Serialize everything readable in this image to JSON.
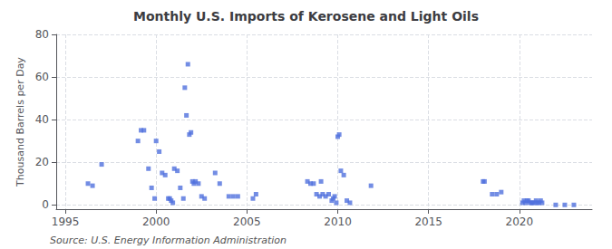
{
  "chart_data": {
    "type": "scatter",
    "title": "Monthly U.S. Imports of Kerosene and Light Oils",
    "ylabel": "Thousand Barrels per Day",
    "annotations": [
      "Source: U.S. Energy Information Administration"
    ],
    "marker": "square",
    "grid": true,
    "xlim": [
      1994.5,
      2024.0
    ],
    "ylim": [
      -2,
      80
    ],
    "xticks": [
      1995,
      2000,
      2005,
      2010,
      2015,
      2020
    ],
    "yticks": [
      0,
      20,
      40,
      60,
      80
    ],
    "x": [
      1996.25,
      1996.5,
      1997.0,
      1999.0,
      1999.17,
      1999.33,
      1999.58,
      1999.75,
      1999.92,
      2000.0,
      2000.17,
      2000.33,
      2000.5,
      2000.67,
      2000.75,
      2000.83,
      2000.92,
      2001.0,
      2001.17,
      2001.33,
      2001.5,
      2001.58,
      2001.67,
      2001.75,
      2001.83,
      2001.92,
      2002.0,
      2002.08,
      2002.17,
      2002.33,
      2002.5,
      2002.67,
      2003.25,
      2003.5,
      2004.0,
      2004.25,
      2004.5,
      2005.33,
      2005.5,
      2008.33,
      2008.5,
      2008.67,
      2008.83,
      2009.0,
      2009.08,
      2009.17,
      2009.33,
      2009.5,
      2009.67,
      2009.75,
      2009.83,
      2009.92,
      2010.0,
      2010.08,
      2010.17,
      2010.33,
      2010.5,
      2010.67,
      2011.83,
      2018.0,
      2018.08,
      2018.5,
      2018.75,
      2019.0,
      2020.17,
      2020.25,
      2020.33,
      2020.42,
      2020.5,
      2020.58,
      2020.67,
      2020.75,
      2020.83,
      2020.92,
      2021.0,
      2021.08,
      2021.17,
      2021.25,
      2022.0,
      2022.5,
      2023.0
    ],
    "values": [
      10,
      9,
      19,
      30,
      35,
      35,
      17,
      8,
      3,
      30,
      25,
      15,
      14,
      3,
      3,
      2,
      1,
      17,
      16,
      8,
      3,
      55,
      42,
      66,
      33,
      34,
      11,
      10,
      11,
      10,
      4,
      3,
      15,
      10,
      4,
      4,
      4,
      3,
      5,
      11,
      10,
      10,
      5,
      4,
      11,
      5,
      4,
      5,
      2,
      3,
      4,
      1,
      32,
      33,
      16,
      14,
      2,
      1,
      9,
      11,
      11,
      5,
      5,
      6,
      1,
      2,
      1,
      2,
      2,
      1,
      1,
      1,
      1,
      2,
      1,
      1,
      2,
      1,
      0,
      0,
      0
    ]
  }
}
